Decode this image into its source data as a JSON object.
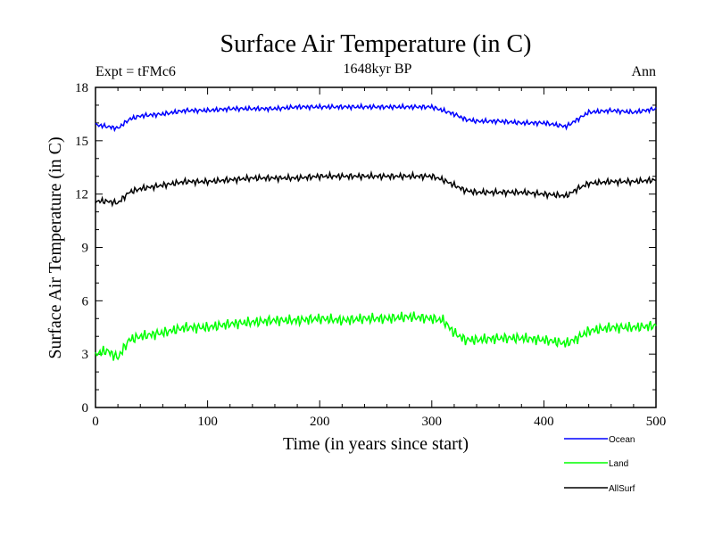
{
  "chart_data": {
    "type": "line",
    "title": "Surface Air Temperature (in C)",
    "subtitle": "1648kyr BP",
    "left_label": "Expt = tFMc6",
    "right_label": "Ann",
    "xlabel": "Time (in years since start)",
    "ylabel": "Surface Air Temperature (in C)",
    "xlim": [
      0,
      500
    ],
    "ylim": [
      0,
      18
    ],
    "xticks": [
      0,
      100,
      200,
      300,
      400,
      500
    ],
    "yticks": [
      0,
      3,
      6,
      9,
      12,
      15,
      18
    ],
    "legend_position": "bottom-right",
    "x": [
      0,
      10,
      20,
      30,
      40,
      60,
      80,
      100,
      120,
      140,
      160,
      180,
      200,
      220,
      240,
      260,
      280,
      300,
      310,
      320,
      330,
      340,
      360,
      380,
      400,
      420,
      430,
      440,
      460,
      480,
      500
    ],
    "series": [
      {
        "name": "Ocean",
        "color": "#0000ff",
        "values": [
          15.9,
          15.8,
          15.7,
          16.2,
          16.4,
          16.5,
          16.7,
          16.7,
          16.8,
          16.8,
          16.8,
          16.9,
          16.9,
          16.9,
          16.9,
          16.9,
          16.9,
          16.9,
          16.7,
          16.5,
          16.2,
          16.1,
          16.1,
          16.0,
          16.0,
          15.8,
          16.2,
          16.6,
          16.7,
          16.6,
          16.8
        ]
      },
      {
        "name": "Land",
        "color": "#00ff00",
        "values": [
          3.0,
          3.2,
          2.8,
          3.8,
          4.0,
          4.2,
          4.5,
          4.5,
          4.7,
          4.8,
          4.9,
          4.9,
          5.0,
          4.9,
          5.0,
          5.0,
          5.1,
          5.0,
          4.9,
          4.2,
          3.8,
          3.8,
          3.9,
          3.9,
          3.8,
          3.6,
          3.9,
          4.3,
          4.5,
          4.5,
          4.6
        ]
      },
      {
        "name": "AllSurf",
        "color": "#000000",
        "values": [
          11.6,
          11.6,
          11.5,
          12.1,
          12.3,
          12.5,
          12.7,
          12.7,
          12.8,
          12.9,
          12.9,
          12.9,
          13.0,
          13.0,
          13.0,
          13.0,
          13.0,
          13.0,
          12.8,
          12.5,
          12.2,
          12.1,
          12.1,
          12.1,
          12.0,
          11.9,
          12.3,
          12.6,
          12.7,
          12.7,
          12.8
        ]
      }
    ]
  }
}
